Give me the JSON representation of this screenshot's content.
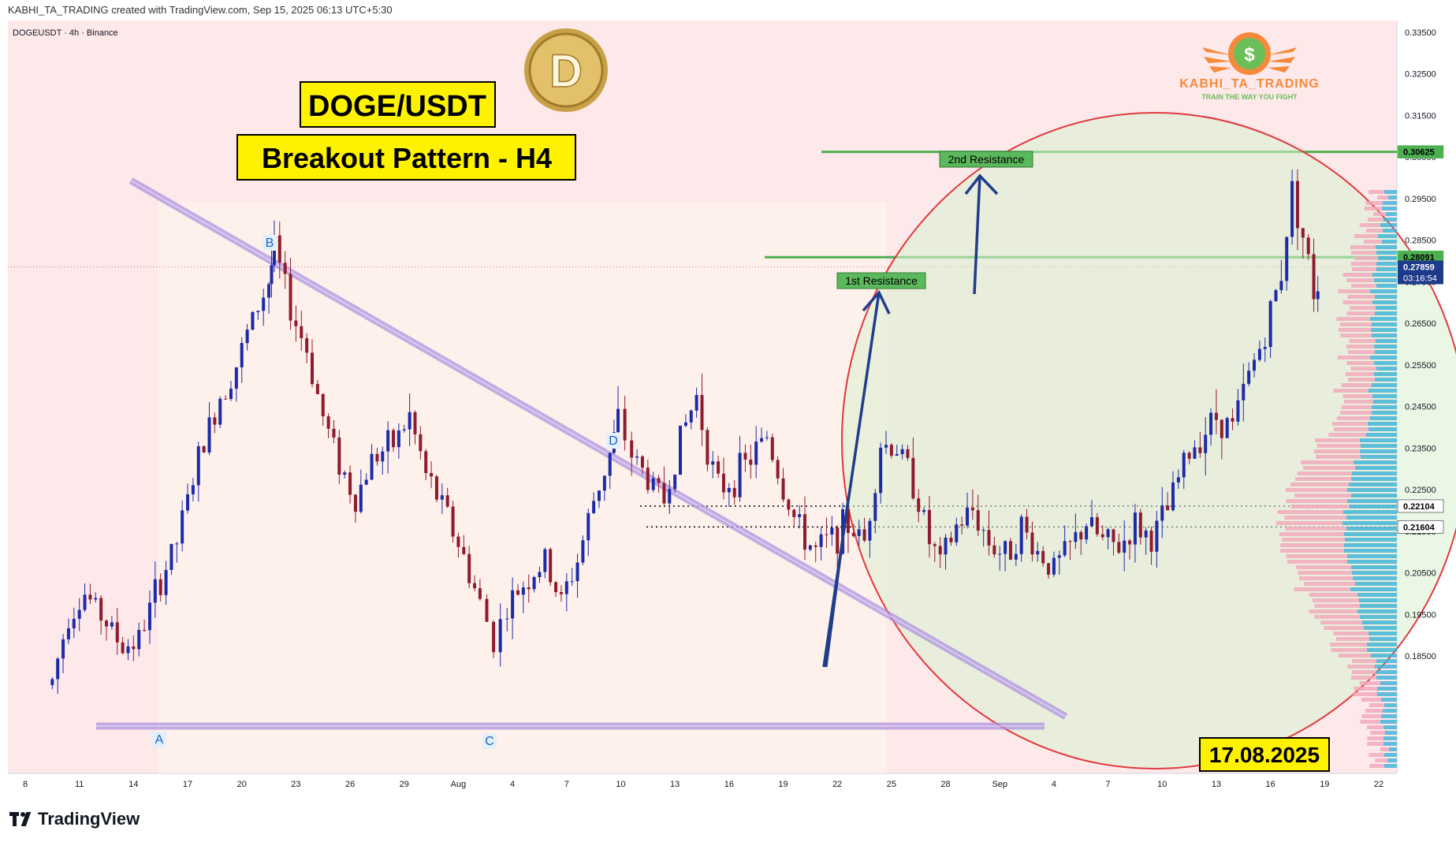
{
  "header": {
    "created_by": "KABHI_TA_TRADING created with TradingView.com, Sep 15, 2025 06:13 UTC+5:30"
  },
  "symbol_info": "DOGEUSDT · 4h · Binance",
  "brand": {
    "name": "KABHI_TA_TRADING",
    "tagline": "TRAIN THE WAY YOU FIGHT",
    "coin_letter": "D"
  },
  "footer": {
    "logo_text": "TradingView"
  },
  "colors": {
    "bg_pink": "#fde8ea",
    "bg_peach": "#fef1ea",
    "up": "#1c2ba8",
    "down": "#8e1b2e",
    "trend": "#a98fe0",
    "resistance": "#4caf50",
    "circle": "#e0393e",
    "circle_fill": "#d8f0d0",
    "label_yellow": "#fff200",
    "price_tag": "#1e3a8a"
  },
  "chart_data": {
    "type": "candlestick",
    "title": "DOGE/USDT",
    "subtitle": "Breakout Pattern - H4",
    "y_axis": {
      "min": 0.18,
      "max": 0.338,
      "ticks": [
        "0.33500",
        "0.32500",
        "0.31500",
        "0.30500",
        "0.29500",
        "0.28500",
        "0.27500",
        "0.26500",
        "0.25500",
        "0.24500",
        "0.23500",
        "0.22500",
        "0.21500",
        "0.20500",
        "0.19500",
        "0.18500"
      ]
    },
    "x_axis": {
      "ticks": [
        "8",
        "11",
        "14",
        "17",
        "20",
        "23",
        "26",
        "29",
        "Aug",
        "4",
        "7",
        "10",
        "13",
        "16",
        "19",
        "22",
        "25",
        "28",
        "Sep",
        "4",
        "7",
        "10",
        "13",
        "16",
        "19",
        "22"
      ]
    },
    "price_labels": [
      {
        "text": "0.30625",
        "value": 0.30625,
        "color": "#4caf50",
        "text_color": "#000000"
      },
      {
        "text": "0.28091",
        "value": 0.28091,
        "color": "#4caf50",
        "text_color": "#000000"
      },
      {
        "text": "0.22104",
        "value": 0.22104,
        "color": "#ffffff",
        "text_color": "#000000"
      },
      {
        "text": "0.21604",
        "value": 0.21604,
        "color": "#ffffff",
        "text_color": "#000000"
      }
    ],
    "current_price": {
      "text": "0.27859",
      "value": 0.27859,
      "countdown": "03:16:54"
    },
    "resistance_levels": [
      {
        "label": "1st Resistance",
        "value": 0.28091
      },
      {
        "label": "2nd Resistance",
        "value": 0.30625
      }
    ],
    "support_levels": [
      0.22104,
      0.21604
    ],
    "pattern_points": [
      {
        "label": "A",
        "date_index": 2.1,
        "price": 0.1885
      },
      {
        "label": "B",
        "date_index": 4.6,
        "price": 0.2865
      },
      {
        "label": "C",
        "date_index": 8.65,
        "price": 0.1885
      },
      {
        "label": "D",
        "date_index": 10.95,
        "price": 0.245
      }
    ],
    "date_annotation": "17.08.2025",
    "price_path": [
      [
        0.5,
        0.18,
        0.178
      ],
      [
        0.8,
        0.2,
        0.19
      ],
      [
        1.1,
        0.2,
        0.2
      ],
      [
        1.5,
        0.196,
        0.19
      ],
      [
        1.8,
        0.188,
        0.186
      ],
      [
        2.1,
        0.189,
        0.189
      ],
      [
        2.4,
        0.205,
        0.195
      ],
      [
        2.8,
        0.215,
        0.21
      ],
      [
        3.2,
        0.235,
        0.23
      ],
      [
        3.6,
        0.25,
        0.245
      ],
      [
        3.9,
        0.258,
        0.252
      ],
      [
        4.2,
        0.27,
        0.262
      ],
      [
        4.5,
        0.278,
        0.272
      ],
      [
        4.6,
        0.286,
        0.28
      ],
      [
        4.9,
        0.272,
        0.265
      ],
      [
        5.2,
        0.262,
        0.255
      ],
      [
        5.5,
        0.245,
        0.24
      ],
      [
        5.8,
        0.235,
        0.228
      ],
      [
        6.1,
        0.225,
        0.22
      ],
      [
        6.4,
        0.235,
        0.23
      ],
      [
        6.8,
        0.24,
        0.232
      ],
      [
        7.1,
        0.245,
        0.24
      ],
      [
        7.4,
        0.232,
        0.225
      ],
      [
        7.8,
        0.222,
        0.215
      ],
      [
        8.1,
        0.212,
        0.205
      ],
      [
        8.4,
        0.2,
        0.195
      ],
      [
        8.65,
        0.19,
        0.188
      ],
      [
        8.9,
        0.198,
        0.195
      ],
      [
        9.2,
        0.205,
        0.2
      ],
      [
        9.6,
        0.21,
        0.205
      ],
      [
        9.9,
        0.2,
        0.196
      ],
      [
        10.2,
        0.21,
        0.206
      ],
      [
        10.5,
        0.225,
        0.22
      ],
      [
        10.8,
        0.235,
        0.232
      ],
      [
        10.95,
        0.245,
        0.238
      ],
      [
        11.2,
        0.235,
        0.232
      ],
      [
        11.5,
        0.23,
        0.225
      ],
      [
        11.8,
        0.225,
        0.22
      ],
      [
        12.1,
        0.24,
        0.235
      ],
      [
        12.4,
        0.25,
        0.245
      ],
      [
        12.6,
        0.238,
        0.232
      ],
      [
        12.8,
        0.228,
        0.222
      ],
      [
        13.1,
        0.23,
        0.226
      ],
      [
        13.4,
        0.235,
        0.23
      ],
      [
        13.7,
        0.24,
        0.236
      ],
      [
        14.0,
        0.228,
        0.222
      ],
      [
        14.3,
        0.218,
        0.212
      ],
      [
        14.6,
        0.212,
        0.208
      ],
      [
        14.9,
        0.215,
        0.212
      ],
      [
        15.2,
        0.218,
        0.215
      ],
      [
        15.5,
        0.215,
        0.21
      ],
      [
        15.8,
        0.24,
        0.232
      ],
      [
        16.1,
        0.238,
        0.232
      ],
      [
        16.4,
        0.23,
        0.224
      ],
      [
        16.7,
        0.215,
        0.21
      ],
      [
        16.9,
        0.208,
        0.206
      ],
      [
        17.2,
        0.218,
        0.214
      ],
      [
        17.5,
        0.222,
        0.218
      ],
      [
        17.8,
        0.215,
        0.21
      ],
      [
        18.1,
        0.21,
        0.208
      ],
      [
        18.4,
        0.218,
        0.214
      ],
      [
        18.7,
        0.212,
        0.208
      ],
      [
        19.0,
        0.207,
        0.205
      ],
      [
        19.3,
        0.212,
        0.21
      ],
      [
        19.6,
        0.22,
        0.214
      ],
      [
        19.9,
        0.215,
        0.21
      ],
      [
        20.2,
        0.212,
        0.21
      ],
      [
        20.5,
        0.218,
        0.215
      ],
      [
        20.8,
        0.215,
        0.211
      ],
      [
        21.1,
        0.222,
        0.218
      ],
      [
        21.4,
        0.235,
        0.228
      ],
      [
        21.7,
        0.24,
        0.236
      ],
      [
        22.0,
        0.245,
        0.24
      ],
      [
        22.3,
        0.242,
        0.238
      ],
      [
        22.6,
        0.255,
        0.25
      ],
      [
        22.9,
        0.265,
        0.26
      ],
      [
        23.2,
        0.28,
        0.275
      ],
      [
        23.4,
        0.305,
        0.29
      ],
      [
        23.6,
        0.29,
        0.282
      ],
      [
        23.8,
        0.275,
        0.27
      ],
      [
        23.95,
        0.278,
        0.276
      ]
    ]
  }
}
